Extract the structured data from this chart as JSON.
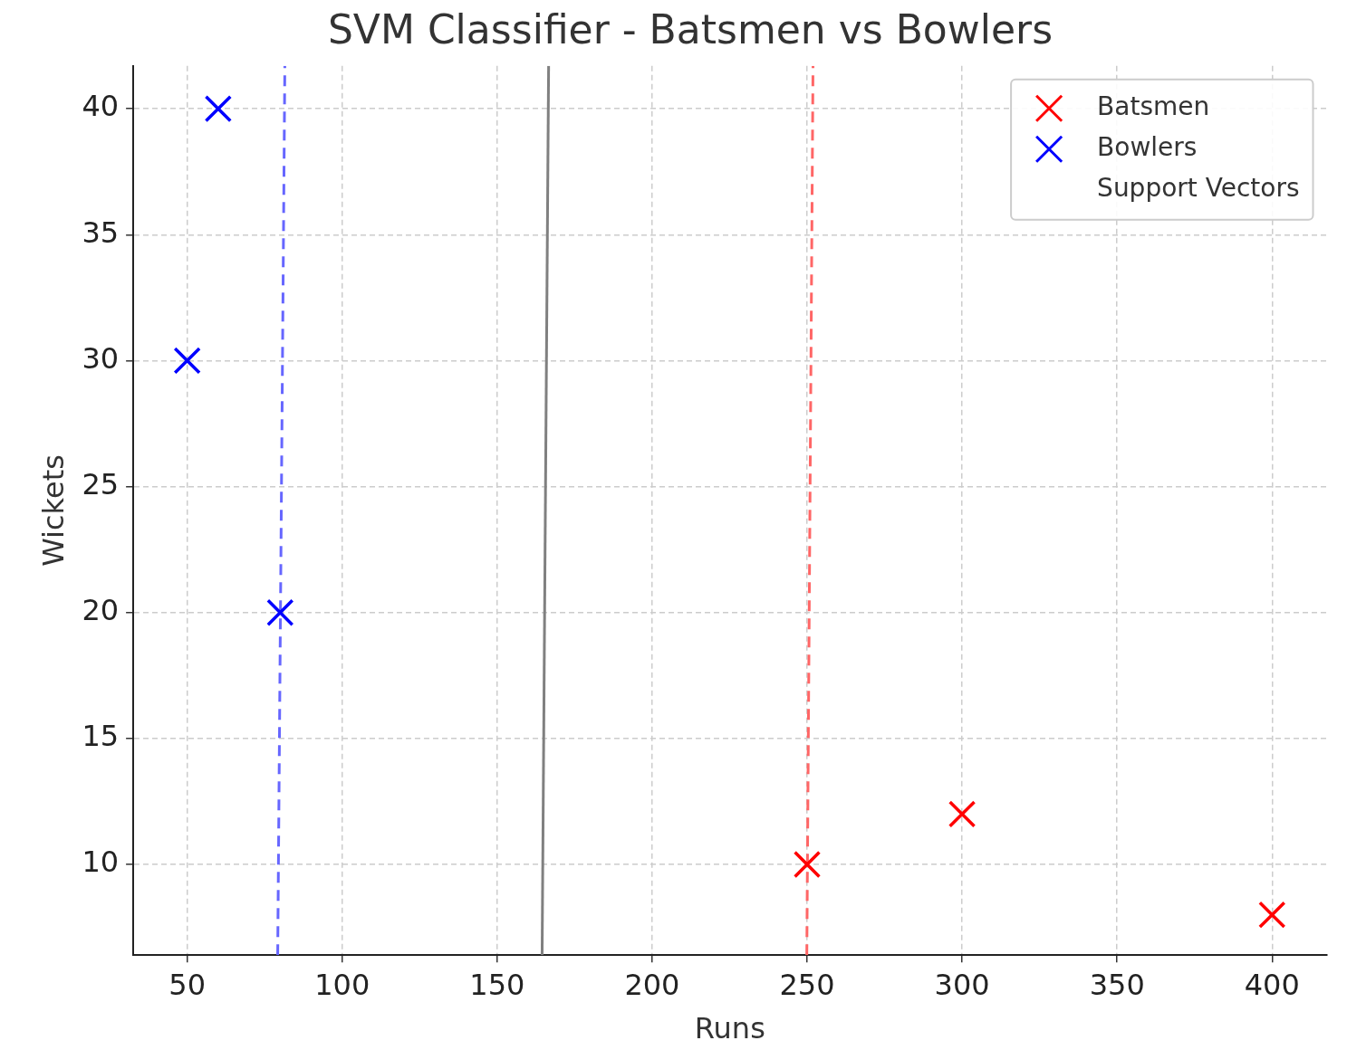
{
  "chart_data": {
    "type": "scatter",
    "title": "SVM Classifier - Batsmen vs Bowlers",
    "xlabel": "Runs",
    "ylabel": "Wickets",
    "xlim": [
      32.6,
      417.6
    ],
    "ylim": [
      6.4,
      41.7
    ],
    "xticks": [
      50,
      100,
      150,
      200,
      250,
      300,
      350,
      400
    ],
    "yticks": [
      10,
      15,
      20,
      25,
      30,
      35,
      40
    ],
    "grid": true,
    "legend": "top right",
    "marker": "cross",
    "series": [
      {
        "name": "Batsmen",
        "color": "#ff0000",
        "x": [
          250,
          300,
          400
        ],
        "values": [
          10,
          12,
          8
        ]
      },
      {
        "name": "Bowlers",
        "color": "#0000ff",
        "x": [
          50,
          60,
          80
        ],
        "values": [
          30,
          40,
          20
        ]
      },
      {
        "name": "Support Vectors",
        "marker": "none"
      },
      {
        "type": "line",
        "color": "#808080",
        "line_style": "solid",
        "marker": "none",
        "x": [
          164.5,
          166.6
        ],
        "values": [
          6.4,
          41.7
        ]
      },
      {
        "type": "line",
        "color": "#6666ff",
        "line_style": "dashed",
        "marker": "none",
        "x": [
          79.2,
          81.5
        ],
        "values": [
          6.4,
          41.7
        ]
      },
      {
        "type": "line",
        "color": "#ff6666",
        "line_style": "dashed",
        "marker": "none",
        "x": [
          249.9,
          251.9
        ],
        "values": [
          6.4,
          41.7
        ]
      }
    ]
  }
}
